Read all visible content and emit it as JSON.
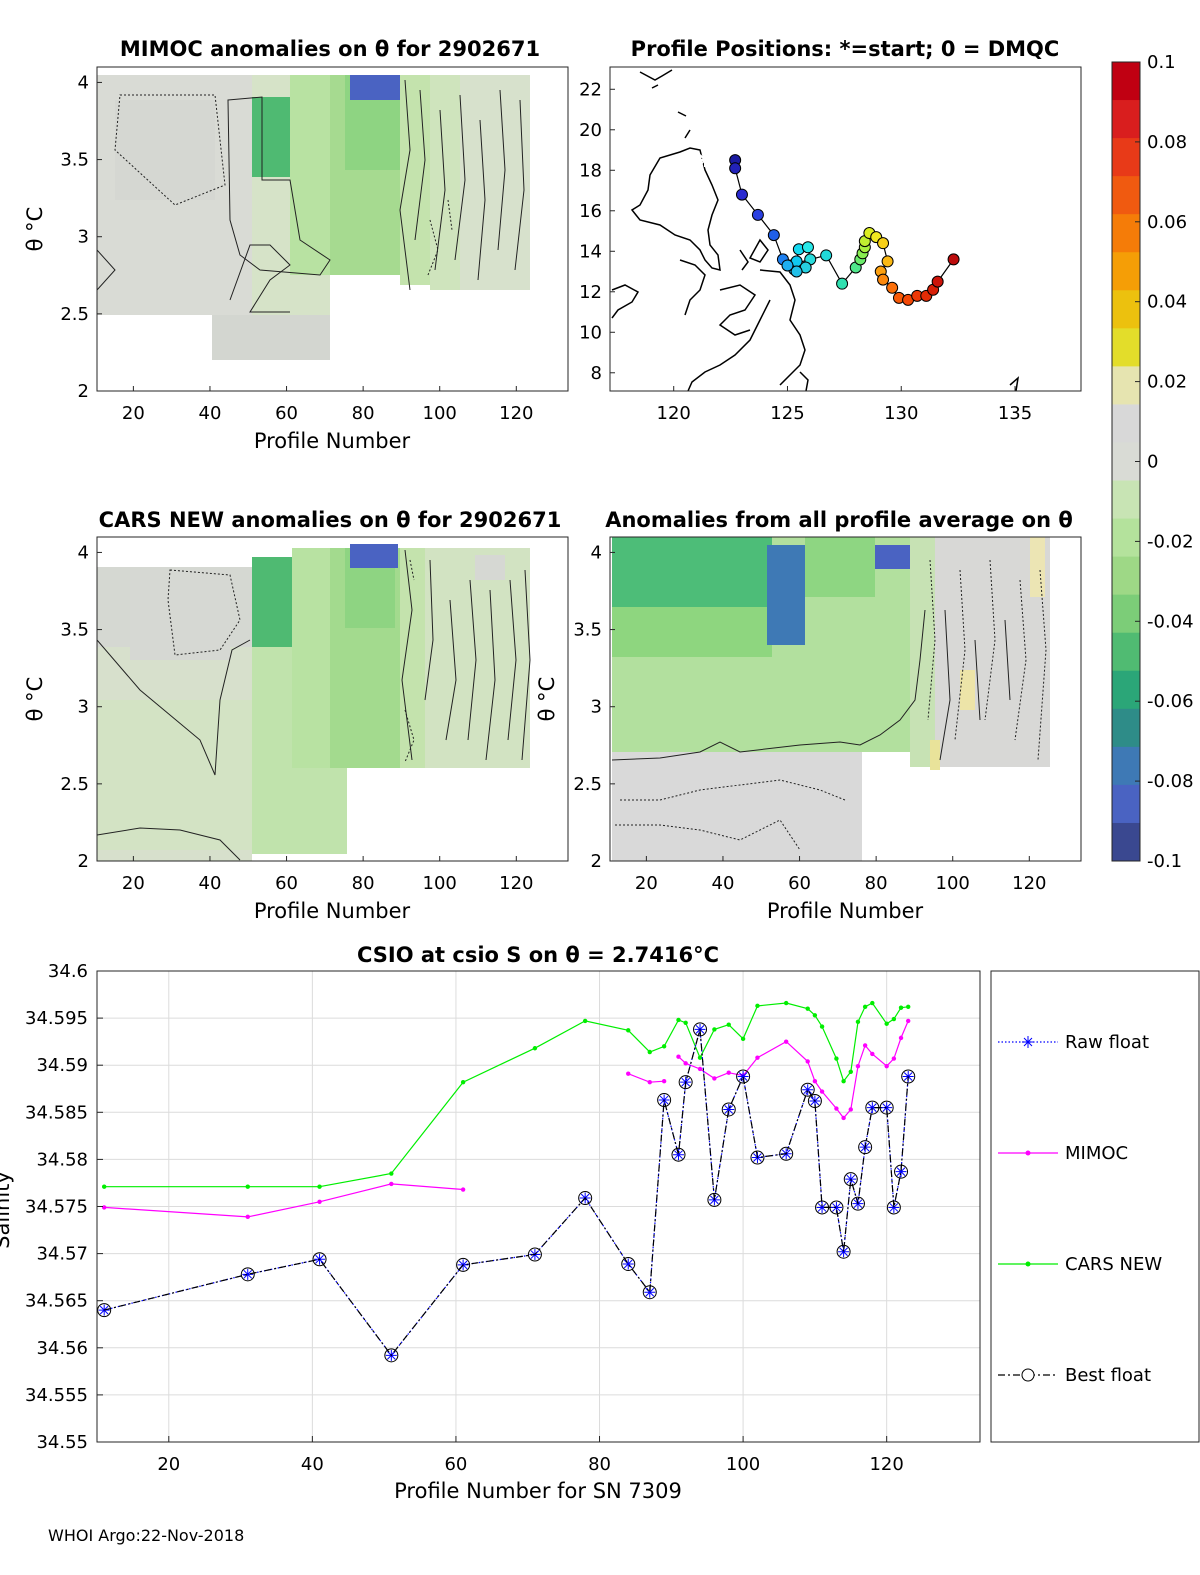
{
  "footer": "WHOI Argo:22-Nov-2018",
  "panels": {
    "mimoc_title": "MIMOC anomalies on θ  for 2902671",
    "positions_title": "Profile Positions: *=start; 0 = DMQC",
    "cars_title": "CARS NEW anomalies on θ for 2902671",
    "allavg_title": "Anomalies from all profile average on θ",
    "xlabel": "Profile Number",
    "ylabel": "θ °C",
    "theta_ticks": [
      "2",
      "2.5",
      "3",
      "3.5",
      "4"
    ],
    "profile_ticks": [
      "20",
      "40",
      "60",
      "80",
      "100",
      "120"
    ],
    "lat_ticks": [
      "8",
      "10",
      "12",
      "14",
      "16",
      "18",
      "20",
      "22"
    ],
    "lon_ticks": [
      "120",
      "125",
      "130",
      "135"
    ]
  },
  "colorbar": {
    "ticks": [
      "0.1",
      "0.08",
      "0.06",
      "0.04",
      "0.02",
      "0",
      "-0.02",
      "-0.04",
      "-0.06",
      "-0.08",
      "-0.1"
    ],
    "colors": [
      "#c00012",
      "#d91e1e",
      "#e83a18",
      "#f05a10",
      "#f57c08",
      "#f59e06",
      "#ecc10e",
      "#e3dd2a",
      "#e6e4b0",
      "#d8d8d8",
      "#d9dbd5",
      "#c8e4b4",
      "#b4e29c",
      "#9ed886",
      "#7ccd78",
      "#50bb72",
      "#2ba678",
      "#2e8c88",
      "#3e79b5",
      "#4a63c2",
      "#3a4890"
    ]
  },
  "float_track": {
    "lon": [
      122.7,
      122.7,
      123.0,
      123.7,
      124.4,
      124.8,
      125.1,
      125.3,
      125.4,
      125.5,
      125.9,
      126.0,
      125.8,
      125.4,
      125.0,
      126.7,
      127.4,
      128.0,
      128.2,
      128.3,
      128.4,
      128.4,
      128.6,
      128.9,
      129.2,
      129.4,
      129.1,
      129.2,
      129.6,
      129.9,
      130.3,
      130.7,
      131.1,
      131.4,
      131.6,
      132.3
    ],
    "lat": [
      18.5,
      18.1,
      16.8,
      15.8,
      14.8,
      13.6,
      13.3,
      13.1,
      13.5,
      14.1,
      14.2,
      13.6,
      13.2,
      13.0,
      13.3,
      13.8,
      12.4,
      13.2,
      13.6,
      13.9,
      14.2,
      14.5,
      14.9,
      14.7,
      14.4,
      13.5,
      13.0,
      12.6,
      12.2,
      11.7,
      11.6,
      11.8,
      11.8,
      12.1,
      12.5,
      13.6
    ],
    "colors": [
      "#1a1aa0",
      "#2222b8",
      "#2a2ad0",
      "#2a3fe0",
      "#1f5fe8",
      "#1c7ff0",
      "#1e95f2",
      "#15b0f0",
      "#10c8f0",
      "#15d8f0",
      "#28e8e8",
      "#2adcdc",
      "#26d0e0",
      "#22c0e8",
      "#1eaef0",
      "#20d8d8",
      "#30e0b0",
      "#50e88c",
      "#6cec6c",
      "#88ee50",
      "#a8f040",
      "#c0ee30",
      "#dcee20",
      "#f0e820",
      "#f8d018",
      "#fab814",
      "#fca010",
      "#fc880c",
      "#fc700a",
      "#f85a08",
      "#f44806",
      "#ee3806",
      "#e42c06",
      "#d82008",
      "#cc140a",
      "#bc0c0c"
    ]
  },
  "chart_data": {
    "type": "line",
    "title": "CSIO at csio S on θ = 2.7416°C",
    "xlabel": "Profile Number for SN 7309",
    "ylabel": "Salinity",
    "xlim": [
      10,
      133
    ],
    "ylim": [
      34.55,
      34.6
    ],
    "x_ticks": [
      "20",
      "40",
      "60",
      "80",
      "100",
      "120"
    ],
    "y_ticks": [
      "34.55",
      "34.555",
      "34.56",
      "34.565",
      "34.57",
      "34.575",
      "34.58",
      "34.585",
      "34.59",
      "34.595",
      "34.6"
    ],
    "legend_position": "right",
    "series": [
      {
        "name": "Raw float",
        "color": "#0000ff",
        "x": [
          11,
          31,
          41,
          51,
          61,
          71,
          78,
          84,
          87,
          89,
          91,
          92,
          94,
          96,
          98,
          100,
          102,
          106,
          109,
          110,
          111,
          113,
          114,
          115,
          116,
          117,
          118,
          120,
          121,
          122,
          123
        ],
        "y": [
          34.564,
          34.5678,
          34.5694,
          34.5592,
          34.5688,
          34.5699,
          34.5759,
          34.5689,
          34.5659,
          34.5863,
          34.5805,
          34.5882,
          34.5938,
          34.5757,
          34.5853,
          34.5888,
          34.5802,
          34.5806,
          34.5874,
          34.5862,
          34.5749,
          34.5749,
          34.5702,
          34.5779,
          34.5753,
          34.5813,
          34.5855,
          34.5855,
          34.5749,
          34.5787,
          34.5888
        ]
      },
      {
        "name": "MIMOC",
        "color": "#ff00ff",
        "x": [
          11,
          31,
          41,
          51,
          61,
          null,
          84,
          87,
          89,
          null,
          91,
          92,
          94,
          96,
          98,
          100,
          102,
          106,
          109,
          110,
          111,
          113,
          114,
          115,
          116,
          117,
          118,
          120,
          121,
          122,
          123
        ],
        "y": [
          34.5749,
          34.5739,
          34.5755,
          34.5774,
          34.5768,
          null,
          34.5891,
          34.5882,
          34.5883,
          null,
          34.5909,
          34.5902,
          34.5896,
          34.5886,
          34.5892,
          34.5889,
          34.5908,
          34.5925,
          34.5904,
          34.5883,
          34.5872,
          34.5854,
          34.5844,
          34.5853,
          34.5899,
          34.5921,
          34.5912,
          34.5899,
          34.5907,
          34.5929,
          34.5947
        ]
      },
      {
        "name": "CARS NEW",
        "color": "#00ee00",
        "x": [
          11,
          31,
          41,
          51,
          61,
          71,
          78,
          84,
          87,
          89,
          91,
          92,
          94,
          96,
          98,
          100,
          102,
          106,
          109,
          110,
          111,
          113,
          114,
          115,
          116,
          117,
          118,
          120,
          121,
          122,
          123
        ],
        "y": [
          34.5771,
          34.5771,
          34.5771,
          34.5785,
          34.5882,
          34.5918,
          34.5947,
          34.5937,
          34.5914,
          34.592,
          34.5948,
          34.5945,
          34.5908,
          34.5938,
          34.5943,
          34.5928,
          34.5963,
          34.5966,
          34.596,
          34.5953,
          34.5941,
          34.5907,
          34.5883,
          34.5893,
          34.5946,
          34.5962,
          34.5966,
          34.5944,
          34.5949,
          34.5961,
          34.5962
        ]
      },
      {
        "name": "Best float",
        "color": "#000000",
        "x": [
          11,
          31,
          41,
          51,
          61,
          71,
          78,
          84,
          87,
          89,
          91,
          92,
          94,
          96,
          98,
          100,
          102,
          106,
          109,
          110,
          111,
          113,
          114,
          115,
          116,
          117,
          118,
          120,
          121,
          122,
          123
        ],
        "y": [
          34.564,
          34.5678,
          34.5694,
          34.5592,
          34.5688,
          34.5699,
          34.5759,
          34.5689,
          34.5659,
          34.5863,
          34.5805,
          34.5882,
          34.5938,
          34.5757,
          34.5853,
          34.5888,
          34.5802,
          34.5806,
          34.5874,
          34.5862,
          34.5749,
          34.5749,
          34.5702,
          34.5779,
          34.5753,
          34.5813,
          34.5855,
          34.5855,
          34.5749,
          34.5787,
          34.5888
        ]
      }
    ]
  }
}
